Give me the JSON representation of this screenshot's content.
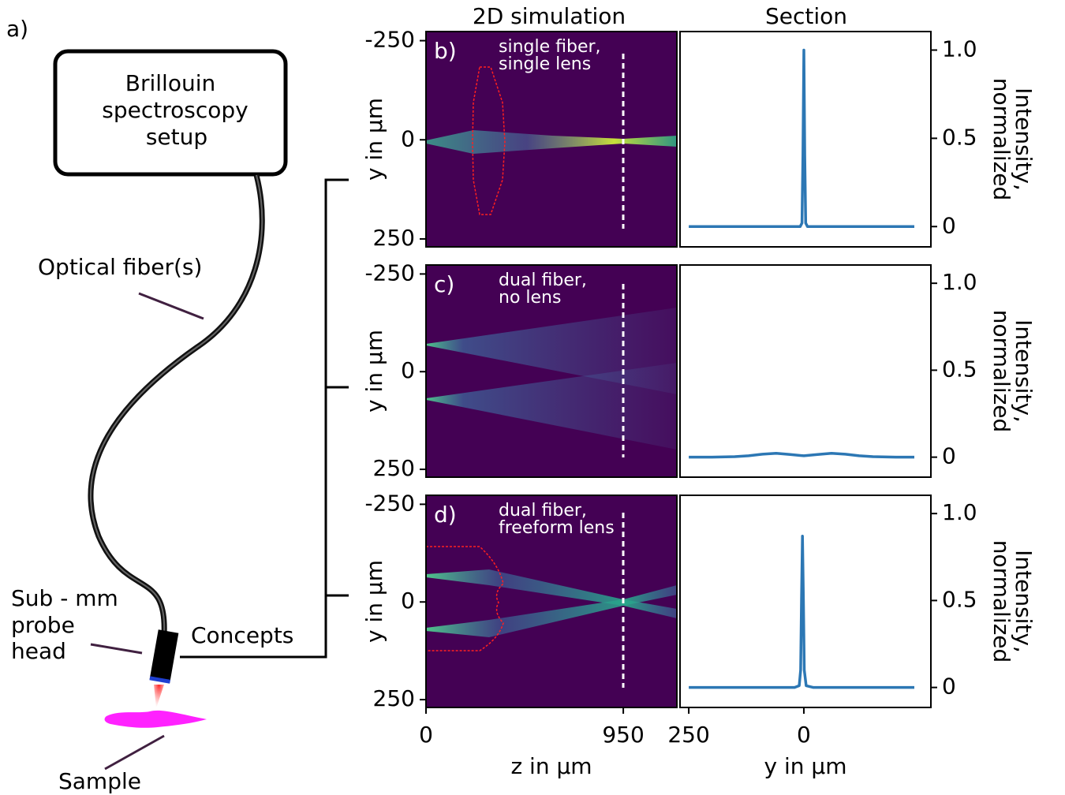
{
  "figure_label": "a)",
  "diagram": {
    "setup_box": [
      "Brillouin",
      "spectroscopy",
      "setup"
    ],
    "fiber_label": "Optical fiber(s)",
    "probe_label": [
      "Sub - mm",
      "probe",
      "head"
    ],
    "concepts_label": "Concepts",
    "sample_label": "Sample"
  },
  "column_titles": [
    "2D simulation",
    "Section"
  ],
  "chart_data": [
    {
      "type": "heatmap",
      "panel_label": "b)",
      "annotation": [
        "single fiber,",
        "single lens"
      ],
      "ylabel": "y in µm",
      "xlim": [
        0,
        1208
      ],
      "ylim": [
        -273,
        270
      ],
      "yticks": [
        -250,
        0,
        250
      ]
    },
    {
      "type": "line",
      "ylabel": [
        "Intensity,",
        "normalized"
      ],
      "color": "#2c77b4",
      "xlim": [
        269,
        -276
      ],
      "ylim": [
        -0.115,
        1.105
      ],
      "yticks": [
        0,
        0.5,
        {
          "value": 1,
          "label": "1.0"
        }
      ],
      "x": [
        250,
        150,
        50,
        20,
        8,
        4,
        2,
        0,
        -2,
        -4,
        -8,
        -20,
        -50,
        -150,
        -240
      ],
      "values": [
        0,
        0,
        0,
        0,
        0,
        0.02,
        0.4,
        1,
        0.4,
        0.02,
        0,
        0,
        0,
        0,
        0
      ]
    },
    {
      "type": "heatmap",
      "panel_label": "c)",
      "annotation": [
        "dual fiber,",
        "no lens"
      ],
      "ylabel": "y in µm",
      "xlim": [
        0,
        1208
      ],
      "ylim": [
        -273,
        270
      ],
      "yticks": [
        -250,
        0,
        250
      ]
    },
    {
      "type": "line",
      "ylabel": [
        "Intensity,",
        "normalized"
      ],
      "color": "#2c77b4",
      "xlim": [
        269,
        -276
      ],
      "ylim": [
        -0.115,
        1.105
      ],
      "yticks": [
        0,
        0.5,
        {
          "value": 1,
          "label": "1.0"
        }
      ],
      "x": [
        250,
        200,
        150,
        120,
        90,
        60,
        30,
        0,
        -30,
        -60,
        -90,
        -120,
        -150,
        -200,
        -240
      ],
      "values": [
        0,
        0,
        0.003,
        0.008,
        0.017,
        0.022,
        0.015,
        0.008,
        0.015,
        0.022,
        0.017,
        0.008,
        0.003,
        0,
        0
      ]
    },
    {
      "type": "heatmap",
      "panel_label": "d)",
      "annotation": [
        "dual fiber,",
        "freeform lens"
      ],
      "ylabel": "y in µm",
      "xlabel": "z in µm",
      "xlim": [
        0,
        1208
      ],
      "xticks": [
        0,
        950
      ],
      "ylim": [
        -273,
        270
      ],
      "yticks": [
        -250,
        0,
        250
      ]
    },
    {
      "type": "line",
      "ylabel": [
        "Intensity,",
        "normalized"
      ],
      "xlabel": "y in µm",
      "color": "#2c77b4",
      "xlim": [
        269,
        -276
      ],
      "xticks": [
        250,
        0
      ],
      "ylim": [
        -0.115,
        1.105
      ],
      "yticks": [
        0,
        0.5,
        {
          "value": 1,
          "label": "1.0"
        }
      ],
      "x": [
        250,
        150,
        50,
        20,
        10,
        7,
        5,
        3,
        1,
        -1,
        -5,
        -20,
        -50,
        -150,
        -240
      ],
      "values": [
        0,
        0,
        0,
        0,
        0.01,
        0.1,
        0.5,
        0.87,
        0.5,
        0.1,
        0.01,
        0,
        0,
        0,
        0
      ]
    }
  ]
}
